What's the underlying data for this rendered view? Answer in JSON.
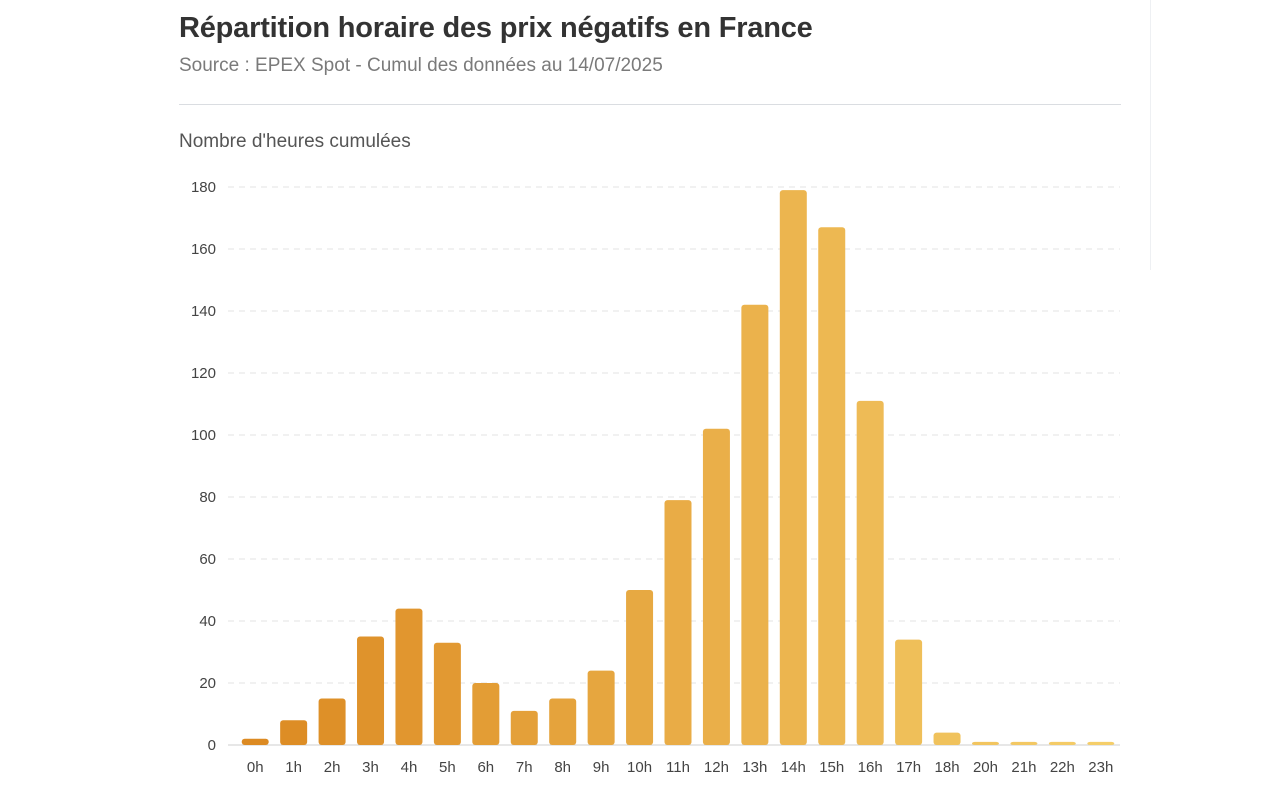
{
  "header": {
    "title": "Répartition horaire des prix négatifs en France",
    "subtitle": "Source : EPEX Spot - Cumul des données au 14/07/2025"
  },
  "chart_data": {
    "type": "bar",
    "title": "Répartition horaire des prix négatifs en France",
    "ylabel": "Nombre d'heures cumulées",
    "xlabel": "",
    "ylim": [
      0,
      180
    ],
    "yticks": [
      0,
      20,
      40,
      60,
      80,
      100,
      120,
      140,
      160,
      180
    ],
    "grid": true,
    "categories": [
      "0h",
      "1h",
      "2h",
      "3h",
      "4h",
      "5h",
      "6h",
      "7h",
      "8h",
      "9h",
      "10h",
      "11h",
      "12h",
      "13h",
      "14h",
      "15h",
      "16h",
      "17h",
      "18h",
      "20h",
      "21h",
      "22h",
      "23h"
    ],
    "values": [
      2,
      8,
      15,
      35,
      44,
      33,
      20,
      11,
      15,
      24,
      50,
      79,
      102,
      142,
      179,
      167,
      111,
      34,
      4,
      1,
      1,
      1,
      1
    ],
    "colors": {
      "start": "#dc8a22",
      "end": "#f5ce69",
      "grid": "#e3e3e3",
      "axis": "#cfcfcf"
    }
  }
}
